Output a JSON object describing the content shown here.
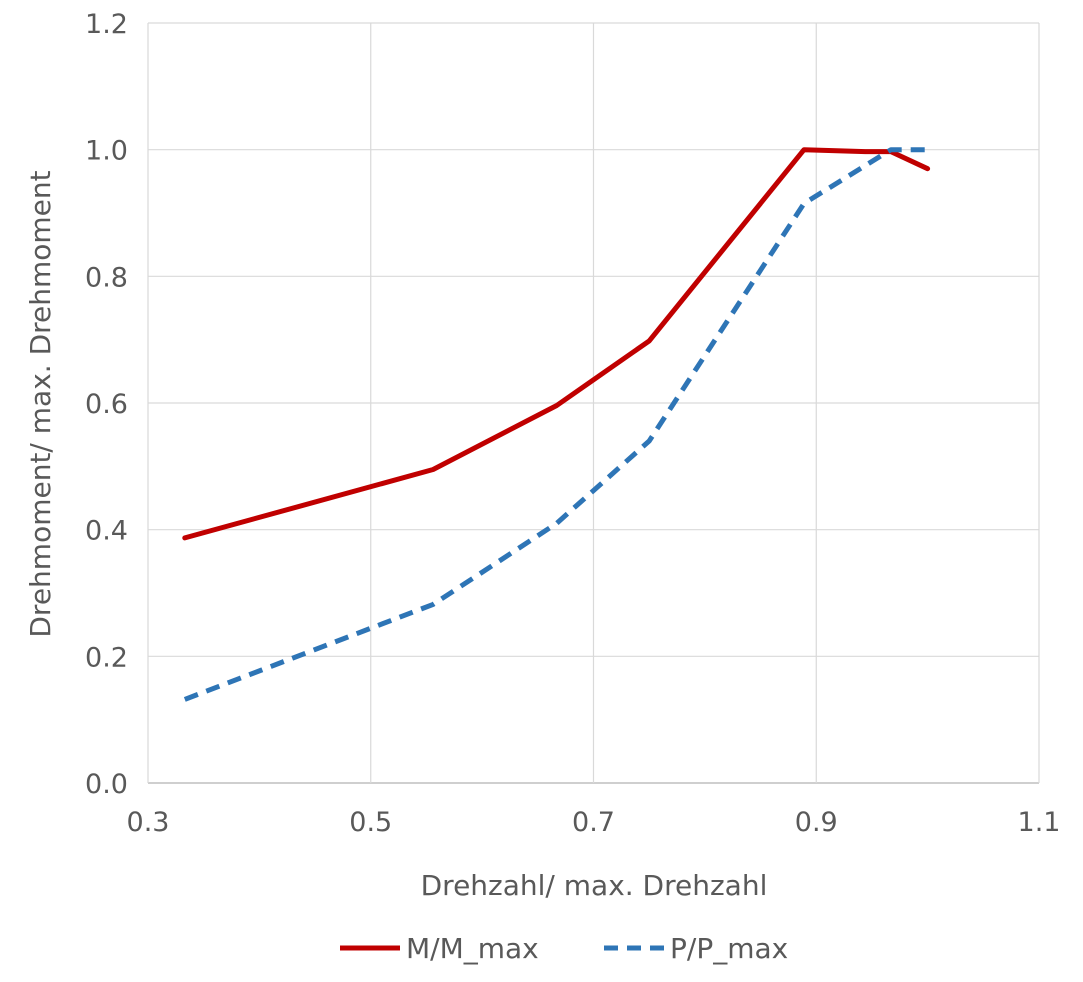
{
  "chart_data": {
    "type": "line",
    "xlabel": "Drehzahl/ max. Drehzahl",
    "ylabel": "Drehmoment/ max. Drehmoment",
    "xlim": [
      0.3,
      1.1
    ],
    "ylim": [
      0.0,
      1.2
    ],
    "xticks": [
      "0.3",
      "0.5",
      "0.7",
      "0.9",
      "1.1"
    ],
    "yticks": [
      "0.0",
      "0.2",
      "0.4",
      "0.6",
      "0.8",
      "1.0",
      "1.2"
    ],
    "grid": true,
    "legend_position": "bottom",
    "series": [
      {
        "name": "M/M_max",
        "color": "#C00000",
        "style": "solid",
        "x": [
          0.333,
          0.556,
          0.667,
          0.75,
          0.889,
          0.944,
          0.967,
          1.0
        ],
        "y": [
          0.387,
          0.495,
          0.596,
          0.698,
          1.0,
          0.997,
          0.997,
          0.97
        ]
      },
      {
        "name": "P/P_max",
        "color": "#2E75B6",
        "style": "dashed",
        "x": [
          0.333,
          0.556,
          0.667,
          0.75,
          0.889,
          0.944,
          0.967,
          1.0
        ],
        "y": [
          0.132,
          0.282,
          0.41,
          0.54,
          0.915,
          0.975,
          1.0,
          1.0
        ]
      }
    ]
  }
}
